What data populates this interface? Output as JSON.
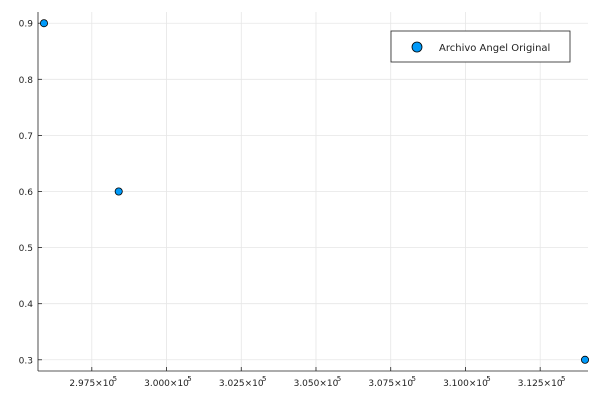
{
  "chart_data": {
    "type": "scatter",
    "title": "",
    "xlabel": "",
    "ylabel": "",
    "x_scale_exponent": 5,
    "xlim": [
      295700,
      314100
    ],
    "ylim": [
      0.28,
      0.92
    ],
    "grid": true,
    "legend_position": "top-right",
    "series": [
      {
        "name": "Archivo Angel Original",
        "color": "#009AF9",
        "points": [
          {
            "x": 295900,
            "y": 0.9
          },
          {
            "x": 298400,
            "y": 0.6
          },
          {
            "x": 314000,
            "y": 0.3
          }
        ]
      }
    ],
    "x_ticks": [
      {
        "value": 297500,
        "label": "2.975×10",
        "sup": "5"
      },
      {
        "value": 300000,
        "label": "3.000×10",
        "sup": "5"
      },
      {
        "value": 302500,
        "label": "3.025×10",
        "sup": "5"
      },
      {
        "value": 305000,
        "label": "3.050×10",
        "sup": "5"
      },
      {
        "value": 307500,
        "label": "3.075×10",
        "sup": "5"
      },
      {
        "value": 310000,
        "label": "3.100×10",
        "sup": "5"
      },
      {
        "value": 312500,
        "label": "3.125×10",
        "sup": "5"
      }
    ],
    "y_ticks": [
      {
        "value": 0.3,
        "label": "0.3"
      },
      {
        "value": 0.4,
        "label": "0.4"
      },
      {
        "value": 0.5,
        "label": "0.5"
      },
      {
        "value": 0.6,
        "label": "0.6"
      },
      {
        "value": 0.7,
        "label": "0.7"
      },
      {
        "value": 0.8,
        "label": "0.8"
      },
      {
        "value": 0.9,
        "label": "0.9"
      }
    ]
  }
}
